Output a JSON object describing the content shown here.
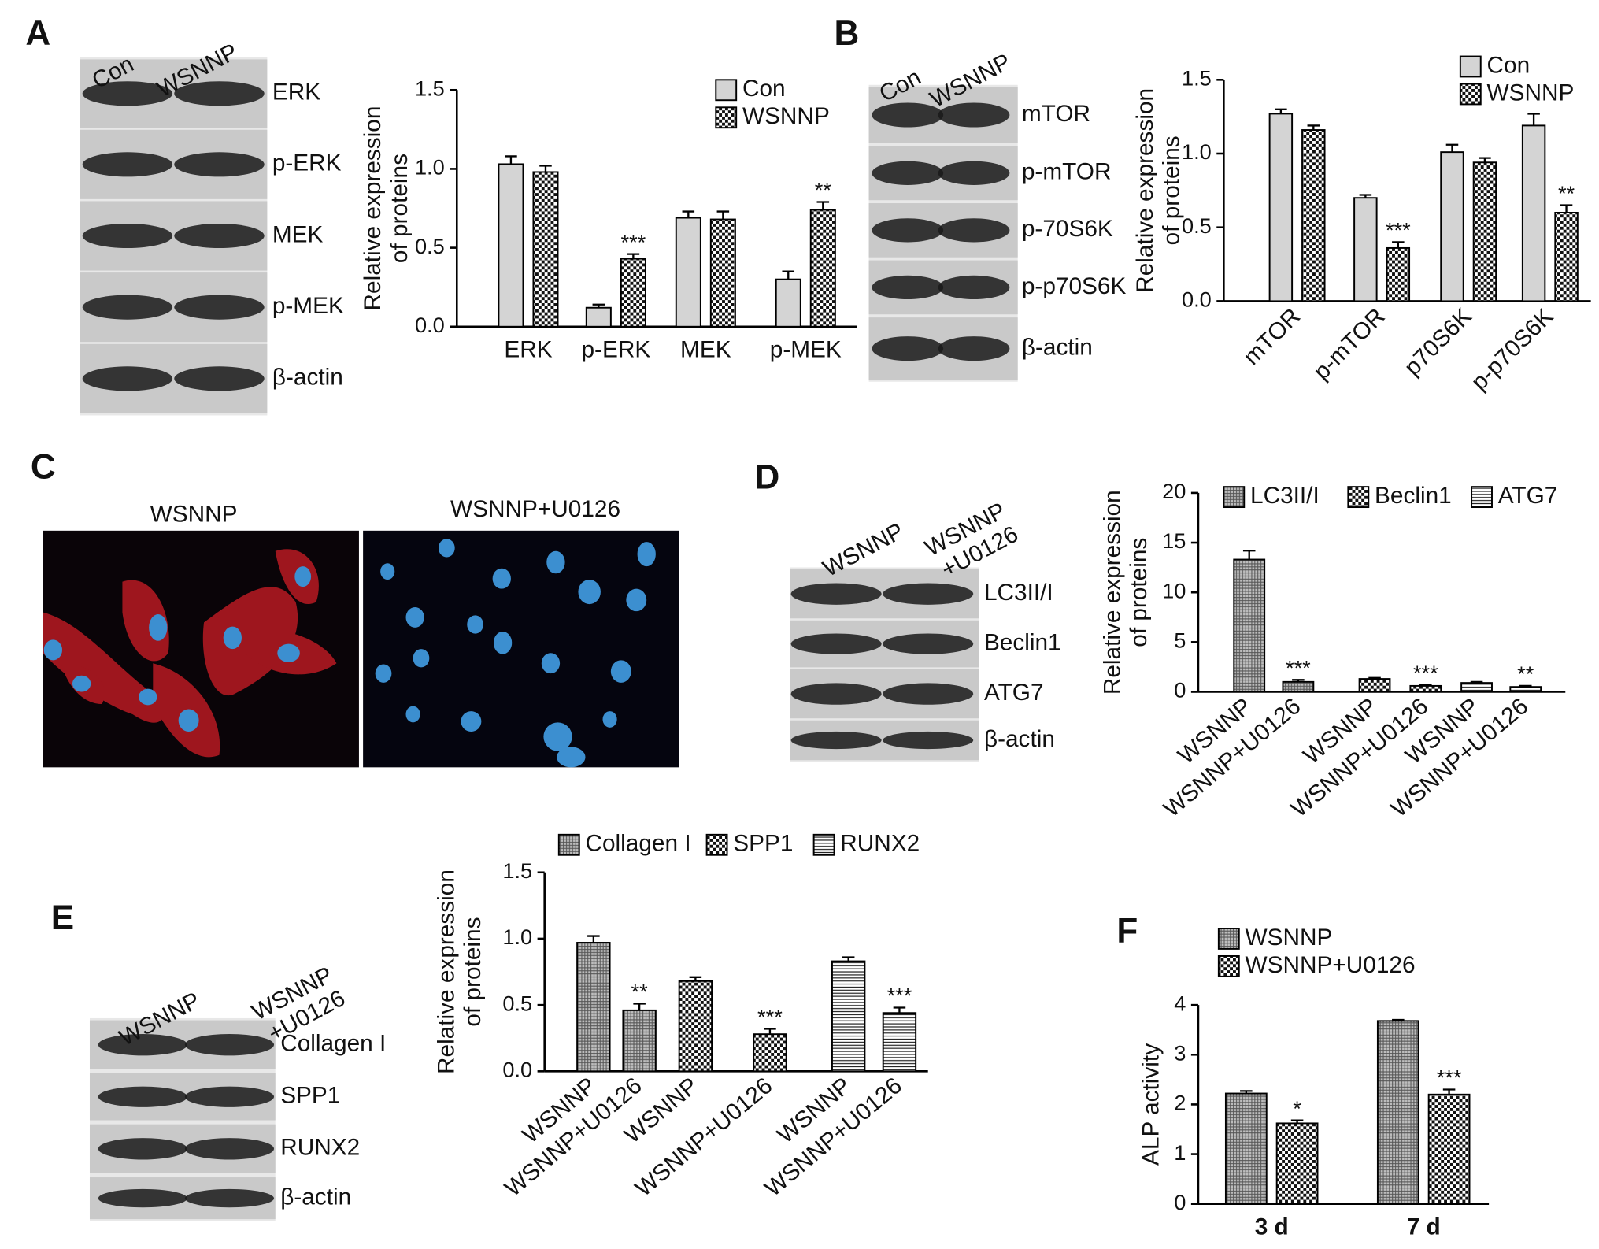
{
  "panel_labels": [
    "A",
    "B",
    "C",
    "D",
    "E",
    "F"
  ],
  "blots": [
    {
      "lanes": [
        [
          "Con"
        ],
        [
          "WSNNP"
        ]
      ],
      "bands": [
        "ERK",
        "p-ERK",
        "MEK",
        "p-MEK",
        "β-actin"
      ]
    },
    {
      "lanes": [
        [
          "Con"
        ],
        [
          "WSNNP"
        ]
      ],
      "bands": [
        "mTOR",
        "p-mTOR",
        "p-70S6K",
        "p-p70S6K",
        "β-actin"
      ]
    },
    {
      "lanes": [
        [
          "WSNNP"
        ],
        [
          "WSNNP",
          "+U0126"
        ]
      ],
      "bands": [
        "LC3II/I",
        "Beclin1",
        "ATG7",
        "β-actin"
      ]
    },
    {
      "lanes": [
        [
          "WSNNP"
        ],
        [
          "WSNNP",
          "+U0126"
        ]
      ],
      "bands": [
        "Collagen I",
        "SPP1",
        "RUNX2",
        "β-actin"
      ]
    }
  ],
  "micrographs": {
    "labels": [
      "WSNNP",
      "WSNNP+U0126"
    ]
  },
  "chart_data": [
    {
      "type": "bar",
      "ylabel": [
        "Relative expression",
        "of proteins"
      ],
      "categories": [
        "ERK",
        "p-ERK",
        "MEK",
        "p-MEK"
      ],
      "series": [
        {
          "name": "Con",
          "color": "#d4d4d4",
          "pattern": "solid",
          "values": [
            1.03,
            0.12,
            0.69,
            0.3
          ],
          "error": [
            0.05,
            0.02,
            0.04,
            0.05
          ],
          "significance": [
            null,
            null,
            null,
            null
          ]
        },
        {
          "name": "WSNNP",
          "color": "#ffffff",
          "pattern": "checker",
          "values": [
            0.98,
            0.43,
            0.68,
            0.74
          ],
          "error": [
            0.04,
            0.03,
            0.05,
            0.05
          ],
          "significance": [
            null,
            "***",
            null,
            "**"
          ]
        }
      ],
      "ylim": [
        0,
        1.5
      ],
      "yticks": [
        {
          "value": 0,
          "label": "0.0"
        },
        {
          "value": 0.5,
          "label": "0.5"
        },
        {
          "value": 1,
          "label": "1.0"
        },
        {
          "value": 1.5,
          "label": "1.5"
        }
      ]
    },
    {
      "type": "bar",
      "ylabel": [
        "Relative expression",
        "of proteins"
      ],
      "categories": [
        "mTOR",
        "p-mTOR",
        "p70S6K",
        "p-p70S6K"
      ],
      "series": [
        {
          "name": "Con",
          "color": "#d4d4d4",
          "pattern": "solid",
          "values": [
            1.27,
            0.7,
            1.01,
            1.19
          ],
          "error": [
            0.03,
            0.02,
            0.05,
            0.08
          ],
          "significance": [
            null,
            null,
            null,
            null
          ]
        },
        {
          "name": "WSNNP",
          "color": "#ffffff",
          "pattern": "checker",
          "values": [
            1.16,
            0.36,
            0.94,
            0.6
          ],
          "error": [
            0.03,
            0.04,
            0.03,
            0.05
          ],
          "significance": [
            null,
            "***",
            null,
            "**"
          ]
        }
      ],
      "ylim": [
        0,
        1.5
      ],
      "yticks": [
        {
          "value": 0,
          "label": "0.0"
        },
        {
          "value": 0.5,
          "label": "0.5"
        },
        {
          "value": 1,
          "label": "1.0"
        },
        {
          "value": 1.5,
          "label": "1.5"
        }
      ]
    },
    {
      "type": "bar",
      "ylabel": [
        "Relative expression",
        "of proteins"
      ],
      "categories": [
        "WSNNP",
        "WSNNP+U0126",
        "WSNNP",
        "WSNNP+U0126",
        "WSNNP",
        "WSNNP+U0126"
      ],
      "series": [
        {
          "name": "LC3II/I",
          "color": "#bdbdbd",
          "pattern": "grid",
          "values": [
            13.3,
            1.0,
            null,
            null,
            null,
            null
          ],
          "error": [
            0.9,
            0.2,
            null,
            null,
            null,
            null
          ],
          "significance": [
            null,
            "***",
            null,
            null,
            null,
            null
          ]
        },
        {
          "name": "Beclin1",
          "color": "#ffffff",
          "pattern": "checker",
          "values": [
            null,
            null,
            1.3,
            0.6,
            null,
            null
          ],
          "error": [
            null,
            null,
            0.1,
            0.1,
            null,
            null
          ],
          "significance": [
            null,
            null,
            null,
            "***",
            null,
            null
          ]
        },
        {
          "name": "ATG7",
          "color": "#ffffff",
          "pattern": "stripes",
          "values": [
            null,
            null,
            null,
            null,
            0.9,
            0.5
          ],
          "error": [
            null,
            null,
            null,
            null,
            0.1,
            0.1
          ],
          "significance": [
            null,
            null,
            null,
            null,
            null,
            "**"
          ]
        }
      ],
      "ylim": [
        0,
        20
      ],
      "yticks": [
        0,
        5,
        10,
        15,
        20
      ]
    },
    {
      "type": "bar",
      "ylabel": [
        "Relative expression",
        "of proteins"
      ],
      "categories": [
        "WSNNP",
        "WSNNP+U0126",
        "WSNNP",
        "WSNNP+U0126",
        "WSNNP",
        "WSNNP+U0126"
      ],
      "series": [
        {
          "name": "Collagen I",
          "color": "#bdbdbd",
          "pattern": "grid",
          "values": [
            0.97,
            0.46,
            null,
            null,
            null,
            null
          ],
          "error": [
            0.05,
            0.05,
            null,
            null,
            null,
            null
          ],
          "significance": [
            null,
            "**",
            null,
            null,
            null,
            null
          ]
        },
        {
          "name": "SPP1",
          "color": "#ffffff",
          "pattern": "checker",
          "values": [
            null,
            null,
            0.68,
            0.28,
            null,
            null
          ],
          "error": [
            null,
            null,
            0.03,
            0.04,
            null,
            null
          ],
          "significance": [
            null,
            null,
            null,
            "***",
            null,
            null
          ]
        },
        {
          "name": "RUNX2",
          "color": "#ffffff",
          "pattern": "stripes",
          "values": [
            null,
            null,
            null,
            null,
            0.83,
            0.44
          ],
          "error": [
            null,
            null,
            null,
            null,
            0.03,
            0.04
          ],
          "significance": [
            null,
            null,
            null,
            null,
            null,
            "***"
          ]
        }
      ],
      "ylim": [
        0,
        1.5
      ],
      "yticks": [
        {
          "value": 0,
          "label": "0.0"
        },
        {
          "value": 0.5,
          "label": "0.5"
        },
        {
          "value": 1,
          "label": "1.0"
        },
        {
          "value": 1.5,
          "label": "1.5"
        }
      ]
    },
    {
      "type": "bar",
      "ylabel": [
        "ALP activity"
      ],
      "categories": [
        "3 d",
        "7 d"
      ],
      "series": [
        {
          "name": "WSNNP",
          "color": "#bdbdbd",
          "pattern": "grid",
          "values": [
            2.22,
            3.68
          ],
          "error": [
            0.05,
            0.02
          ],
          "significance": [
            null,
            null
          ]
        },
        {
          "name": "WSNNP+U0126",
          "color": "#ffffff",
          "pattern": "checker",
          "values": [
            1.62,
            2.2
          ],
          "error": [
            0.06,
            0.1
          ],
          "significance": [
            "*",
            "***"
          ]
        }
      ],
      "ylim": [
        0,
        4
      ],
      "yticks": [
        0,
        1,
        2,
        3,
        4
      ]
    }
  ]
}
